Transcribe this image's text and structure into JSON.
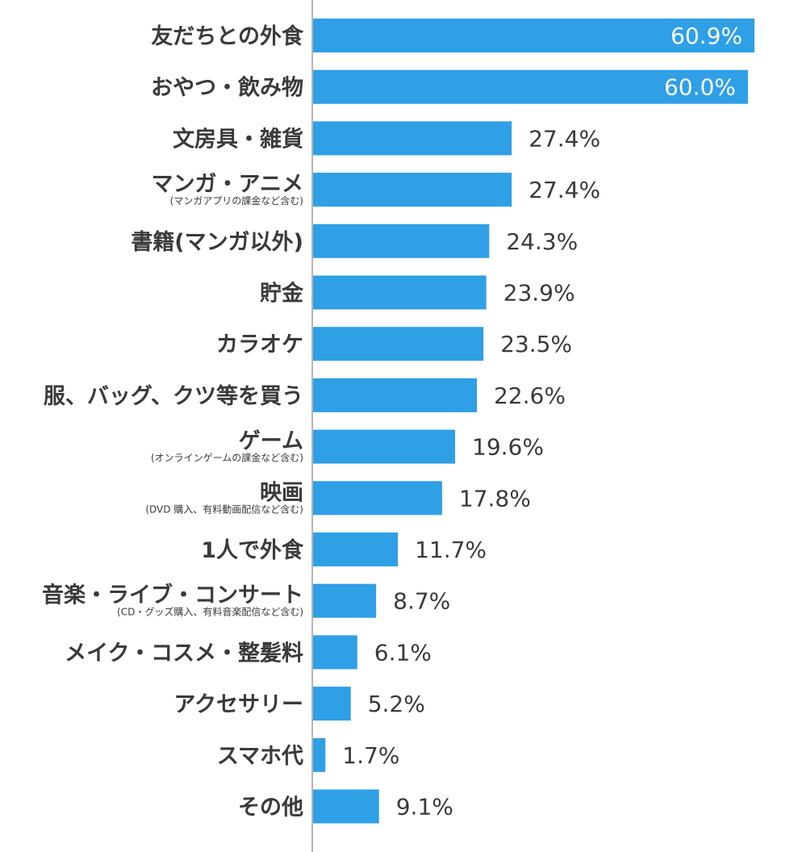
{
  "chart_data": {
    "type": "bar",
    "orientation": "horizontal",
    "title": "",
    "xlabel": "",
    "ylabel": "",
    "xlim": [
      0,
      60.9
    ],
    "unit": "%",
    "grid": false,
    "legend": "none",
    "colors": {
      "bar": "#2f9fe6",
      "axis": "#b5b5b5",
      "text": "#3a3a3a",
      "inside_text": "#ffffff"
    },
    "categories": [
      {
        "label": "友だちとの外食",
        "sublabel": ""
      },
      {
        "label": "おやつ・飲み物",
        "sublabel": ""
      },
      {
        "label": "文房具・雑貨",
        "sublabel": ""
      },
      {
        "label": "マンガ・アニメ",
        "sublabel": "(マンガアプリの課金など含む)"
      },
      {
        "label": "書籍(マンガ以外)",
        "sublabel": ""
      },
      {
        "label": "貯金",
        "sublabel": ""
      },
      {
        "label": "カラオケ",
        "sublabel": ""
      },
      {
        "label": "服、バッグ、クツ等を買う",
        "sublabel": ""
      },
      {
        "label": "ゲーム",
        "sublabel": "(オンラインゲームの課金など含む)"
      },
      {
        "label": "映画",
        "sublabel": "(DVD 購入、有料動画配信など含む)"
      },
      {
        "label": "1人で外食",
        "sublabel": ""
      },
      {
        "label": "音楽・ライブ・コンサート",
        "sublabel": "(CD・グッズ購入、有料音楽配信など含む)"
      },
      {
        "label": "メイク・コスメ・整髪料",
        "sublabel": ""
      },
      {
        "label": "アクセサリー",
        "sublabel": ""
      },
      {
        "label": "スマホ代",
        "sublabel": ""
      },
      {
        "label": "その他",
        "sublabel": ""
      }
    ],
    "values": [
      60.9,
      60.0,
      27.4,
      27.4,
      24.3,
      23.9,
      23.5,
      22.6,
      19.6,
      17.8,
      11.7,
      8.7,
      6.1,
      5.2,
      1.7,
      9.1
    ],
    "value_labels": [
      "60.9%",
      "60.0%",
      "27.4%",
      "27.4%",
      "24.3%",
      "23.9%",
      "23.5%",
      "22.6%",
      "19.6%",
      "17.8%",
      "11.7%",
      "8.7%",
      "6.1%",
      "5.2%",
      "1.7%",
      "9.1%"
    ],
    "inside_label_threshold": 50
  }
}
